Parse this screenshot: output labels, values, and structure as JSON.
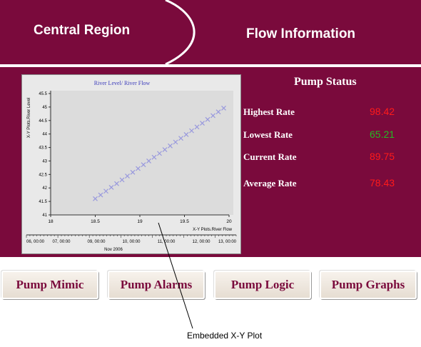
{
  "header": {
    "left_title": "Central Region",
    "right_title": "Flow Information",
    "bg": "#7a0a3c"
  },
  "pump_status": {
    "title": "Pump Status",
    "rows": [
      {
        "label": "Highest Rate",
        "value": "98.42",
        "color": "#ff1a1a"
      },
      {
        "label": "Lowest Rate",
        "value": "65.21",
        "color": "#22bb22"
      },
      {
        "label": "Current Rate",
        "value": "89.75",
        "color": "#ff1a1a"
      },
      {
        "label": "Average Rate",
        "value": "78.43",
        "color": "#ff1a1a"
      }
    ]
  },
  "buttons": [
    "Pump Mimic",
    "Pump Alarms",
    "Pump Logic",
    "Pump Graphs"
  ],
  "callout": "Embedded X-Y Plot",
  "chart_data": {
    "type": "scatter",
    "title": "River Level/ River Flow",
    "xlabel": "X-Y Plots.River Flow",
    "ylabel": "X-Y Plots.River Level",
    "xlim": [
      18,
      20
    ],
    "ylim": [
      41,
      45.5
    ],
    "x_ticks": [
      "18",
      "18.5",
      "19",
      "19.5",
      "20"
    ],
    "y_ticks": [
      "41",
      "41.5",
      "42",
      "42.5",
      "43",
      "43.5",
      "44",
      "44.5",
      "45",
      "45.5"
    ],
    "x": [
      18.5,
      18.56,
      18.62,
      18.68,
      18.74,
      18.8,
      18.86,
      18.92,
      18.98,
      19.04,
      19.1,
      19.16,
      19.22,
      19.28,
      19.34,
      19.4,
      19.46,
      19.52,
      19.58,
      19.64,
      19.7,
      19.76,
      19.82,
      19.88,
      19.94
    ],
    "y": [
      41.6,
      41.74,
      41.88,
      42.02,
      42.16,
      42.3,
      42.44,
      42.58,
      42.72,
      42.86,
      43.0,
      43.14,
      43.28,
      43.42,
      43.56,
      43.7,
      43.84,
      43.98,
      44.12,
      44.26,
      44.4,
      44.54,
      44.68,
      44.82,
      44.96
    ],
    "time_axis": {
      "ticks": [
        "06, 00:00",
        "07, 00:00",
        "09, 00:00",
        "10, 00:00",
        "11, 00:00",
        "12, 00:00",
        "13, 00:00"
      ],
      "label": "Nov 2006"
    },
    "marker_color": "#9999dd"
  }
}
